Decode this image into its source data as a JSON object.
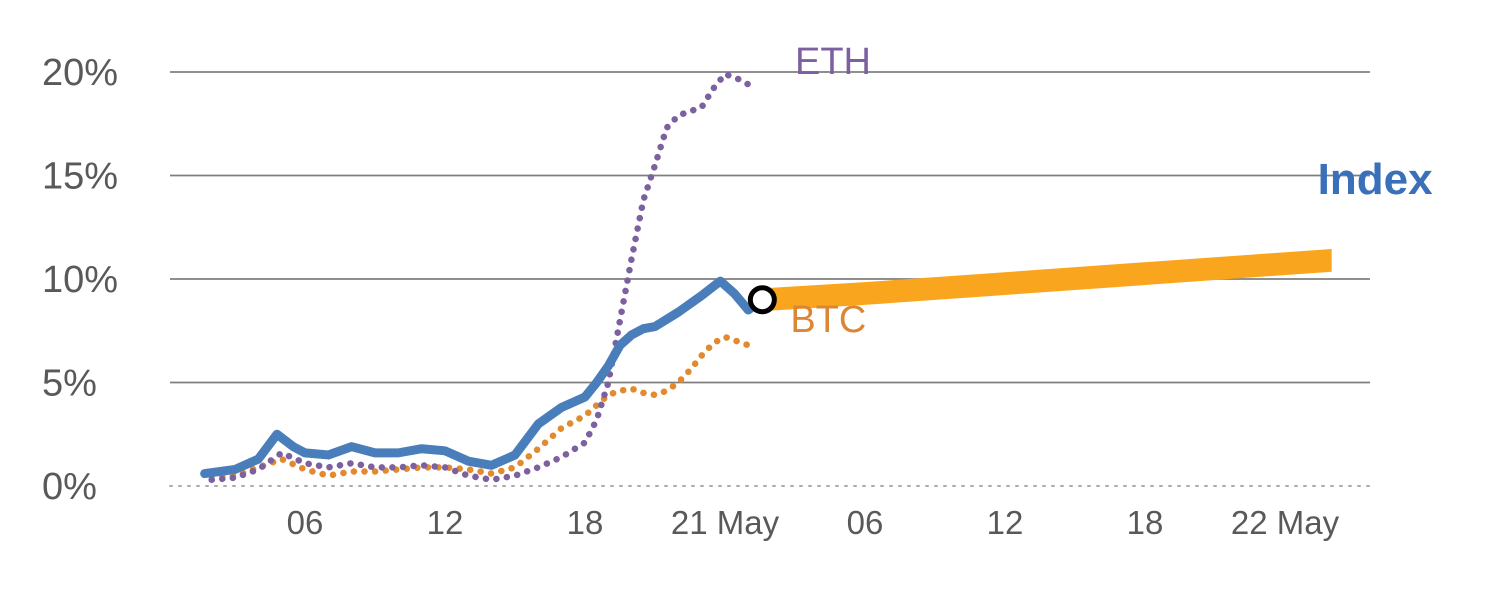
{
  "chart_data": {
    "type": "line",
    "title": "",
    "grid": {
      "line_color": "#7f7f7f",
      "zero_line_color": "#ababab",
      "label_color": "#595959",
      "vertical_grid": false,
      "legend": "inline-labels"
    },
    "x_axis": {
      "unit": "hours",
      "ticks": [
        {
          "hour": 6,
          "label": "06"
        },
        {
          "hour": 12,
          "label": "12"
        },
        {
          "hour": 18,
          "label": "18"
        },
        {
          "hour": 24,
          "label": "21 May"
        },
        {
          "hour": 30,
          "label": "06"
        },
        {
          "hour": 36,
          "label": "12"
        },
        {
          "hour": 42,
          "label": "18"
        },
        {
          "hour": 48,
          "label": "22 May"
        }
      ]
    },
    "y_axis": {
      "range": [
        0,
        21
      ],
      "ticks": [
        {
          "value": 0,
          "label": "0%"
        },
        {
          "value": 5,
          "label": "5%"
        },
        {
          "value": 10,
          "label": "10%"
        },
        {
          "value": 15,
          "label": "15%"
        },
        {
          "value": 20,
          "label": "20%"
        }
      ]
    },
    "series": [
      {
        "name": "Index",
        "color": "#4a7ebb",
        "style": "solid",
        "x_hours": [
          1.7,
          3,
          4,
          4.8,
          5.5,
          6,
          7,
          8,
          9,
          10,
          11,
          12,
          13,
          14,
          15,
          16,
          17,
          18,
          18.5,
          19,
          19.5,
          20,
          20.5,
          21,
          22,
          23,
          23.8,
          24.4,
          25,
          25.6
        ],
        "values": [
          0.6,
          0.8,
          1.3,
          2.5,
          1.9,
          1.6,
          1.5,
          1.9,
          1.6,
          1.6,
          1.8,
          1.7,
          1.2,
          1.0,
          1.5,
          3.0,
          3.8,
          4.3,
          5.0,
          5.8,
          6.8,
          7.3,
          7.6,
          7.7,
          8.4,
          9.2,
          9.9,
          9.3,
          8.5,
          9.0
        ],
        "label": {
          "text": "Index",
          "hour": 49.4,
          "pct": 14.7,
          "color": "#3a6fb9",
          "bold": true,
          "size": 44
        }
      },
      {
        "name": "ETH",
        "color": "#7d60a0",
        "style": "dotted",
        "x_hours": [
          2,
          3,
          4,
          5,
          6,
          7,
          8,
          9,
          10,
          11,
          12,
          13,
          14,
          15,
          16,
          17,
          18,
          18.5,
          19,
          19.5,
          20,
          20.5,
          21,
          21.5,
          22,
          23,
          23.5,
          24,
          24.5,
          25
        ],
        "values": [
          0.3,
          0.4,
          0.8,
          1.6,
          1.1,
          0.9,
          1.1,
          0.9,
          0.9,
          1.0,
          0.9,
          0.5,
          0.3,
          0.5,
          0.9,
          1.4,
          2.1,
          3.2,
          5.0,
          8.0,
          11.0,
          13.8,
          15.5,
          17.3,
          17.9,
          18.3,
          19.2,
          19.9,
          19.7,
          19.4
        ],
        "label": {
          "text": "ETH",
          "hour": 27.0,
          "pct": 20.4,
          "color": "#7d60a0",
          "bold": false,
          "size": 38
        }
      },
      {
        "name": "BTC",
        "color": "#e18a2e",
        "style": "dotted",
        "x_hours": [
          2,
          3,
          4,
          5,
          6,
          7,
          8,
          9,
          10,
          11,
          12,
          13,
          14,
          15,
          16,
          17,
          18,
          19,
          19.5,
          20,
          20.5,
          21,
          21.5,
          22,
          22.5,
          23,
          23.5,
          24,
          24.5,
          25
        ],
        "values": [
          0.5,
          0.5,
          0.9,
          1.3,
          0.8,
          0.5,
          0.7,
          0.7,
          0.8,
          0.9,
          0.9,
          0.8,
          0.6,
          0.9,
          1.8,
          2.8,
          3.4,
          4.4,
          4.6,
          4.7,
          4.5,
          4.4,
          4.6,
          5.0,
          5.6,
          6.3,
          6.9,
          7.2,
          7.0,
          6.8
        ],
        "label": {
          "text": "BTC",
          "hour": 26.8,
          "pct": 7.9,
          "color": "#dc8633",
          "bold": false,
          "size": 38
        }
      }
    ],
    "forecast_band": {
      "name": "BTC forecast band",
      "color": "#faa51e",
      "x_hours": [
        25.6,
        30,
        35,
        40,
        45,
        50
      ],
      "center": [
        9.0,
        9.3,
        9.7,
        10.1,
        10.5,
        10.9
      ],
      "half_width": 0.55
    },
    "marker": {
      "hour": 25.6,
      "pct": 9.0,
      "ring_color": "#000000",
      "fill_color": "#ffffff",
      "radius": 12
    }
  }
}
